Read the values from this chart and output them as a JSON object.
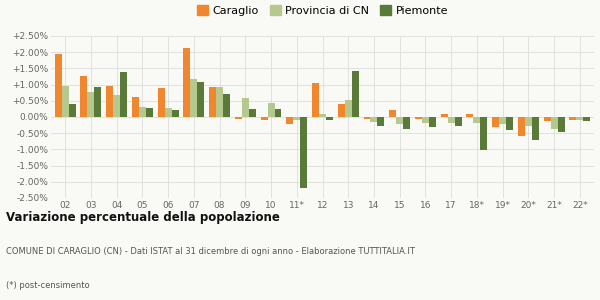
{
  "categories": [
    "02",
    "03",
    "04",
    "05",
    "06",
    "07",
    "08",
    "09",
    "10",
    "11*",
    "12",
    "13",
    "14",
    "15",
    "16",
    "17",
    "18*",
    "19*",
    "20*",
    "21*",
    "22*"
  ],
  "caraglio": [
    1.93,
    1.28,
    0.95,
    0.62,
    0.88,
    2.12,
    0.92,
    -0.05,
    -0.1,
    -0.22,
    1.05,
    0.4,
    -0.07,
    0.22,
    -0.05,
    0.1,
    0.08,
    -0.3,
    -0.6,
    -0.12,
    -0.08
  ],
  "provincia": [
    0.96,
    0.78,
    0.68,
    0.3,
    0.28,
    1.18,
    0.92,
    0.6,
    0.42,
    -0.08,
    0.1,
    0.52,
    -0.15,
    -0.22,
    -0.2,
    -0.2,
    -0.18,
    -0.22,
    -0.28,
    -0.38,
    -0.08
  ],
  "piemonte": [
    0.4,
    0.92,
    1.38,
    0.28,
    0.22,
    1.08,
    0.7,
    0.25,
    0.25,
    -2.18,
    -0.08,
    1.42,
    -0.28,
    -0.38,
    -0.3,
    -0.28,
    -1.02,
    -0.4,
    -0.72,
    -0.45,
    -0.13
  ],
  "color_caraglio": "#f0862d",
  "color_provincia": "#b5c98e",
  "color_piemonte": "#5a7a3a",
  "ylim": [
    -2.5,
    2.5
  ],
  "ytick_vals": [
    -2.5,
    -2.0,
    -1.5,
    -1.0,
    -0.5,
    0.0,
    0.5,
    1.0,
    1.5,
    2.0,
    2.5
  ],
  "ytick_labels": [
    "-2.50%",
    "-2.00%",
    "-1.50%",
    "-1.00%",
    "-0.50%",
    "0.00%",
    "+0.50%",
    "+1.00%",
    "+1.50%",
    "+2.00%",
    "+2.50%"
  ],
  "title": "Variazione percentuale della popolazione",
  "subtitle": "COMUNE DI CARAGLIO (CN) - Dati ISTAT al 31 dicembre di ogni anno - Elaborazione TUTTITALIA.IT",
  "footnote": "(*) post-censimento",
  "legend_labels": [
    "Caraglio",
    "Provincia di CN",
    "Piemonte"
  ],
  "bg_color": "#f9f9f6",
  "grid_color": "#dddddd",
  "bar_width": 0.27
}
